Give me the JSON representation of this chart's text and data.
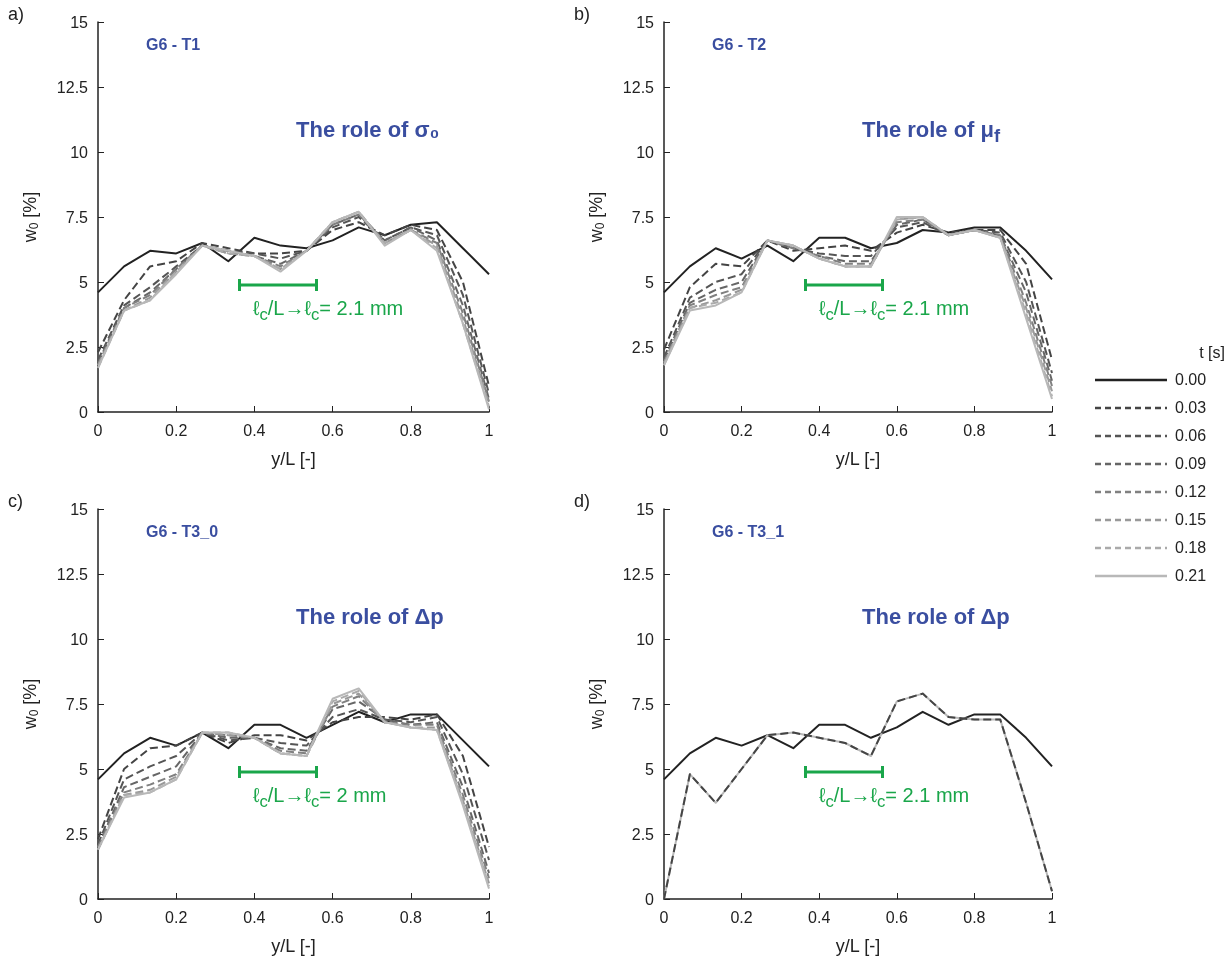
{
  "chart_data": [
    {
      "type": "line",
      "title": "G6 - T1",
      "subtitle": "The role of σ₀",
      "xlabel": "y/L [-]",
      "ylabel": "w$_{0}$ [%]",
      "annotations": [
        "a)",
        "ℓ$_{c}$/L→ℓ$_{c}$= 2.1 mm"
      ],
      "x": [
        0,
        0.0667,
        0.1333,
        0.2,
        0.2667,
        0.3333,
        0.4,
        0.4667,
        0.5333,
        0.6,
        0.6667,
        0.7333,
        0.8,
        0.8667,
        0.9333,
        1
      ],
      "xlim": [
        0,
        1
      ],
      "xticks": [
        0,
        0.2,
        0.4,
        0.6,
        0.8,
        1
      ],
      "ylim": [
        0,
        15
      ],
      "yticks": [
        0,
        2.5,
        5,
        7.5,
        10,
        12.5,
        15
      ],
      "grid": false,
      "legend": false,
      "marker": "none",
      "series": [
        {
          "color": "#222222",
          "line_style": "solid",
          "values": [
            4.6,
            5.6,
            6.2,
            6.1,
            6.5,
            5.8,
            6.7,
            6.4,
            6.3,
            6.6,
            7.1,
            6.8,
            7.2,
            7.3,
            6.3,
            5.3
          ]
        },
        {
          "color": "#444444",
          "line_style": "dashed",
          "values": [
            2.3,
            4.3,
            5.6,
            5.8,
            6.5,
            6.3,
            6.1,
            6.1,
            6.2,
            7.0,
            7.3,
            6.8,
            7.2,
            7.0,
            5.0,
            1.0
          ]
        },
        {
          "color": "#555555",
          "line_style": "dashed",
          "values": [
            2.0,
            4.1,
            4.8,
            5.6,
            6.4,
            6.2,
            6.1,
            5.9,
            6.2,
            7.1,
            7.5,
            6.6,
            7.1,
            6.8,
            4.5,
            0.7
          ]
        },
        {
          "color": "#666666",
          "line_style": "dashed",
          "values": [
            1.9,
            4.0,
            4.6,
            5.5,
            6.4,
            6.2,
            6.0,
            5.7,
            6.2,
            7.2,
            7.6,
            6.6,
            7.1,
            6.6,
            4.1,
            0.5
          ]
        },
        {
          "color": "#808080",
          "line_style": "dashed",
          "values": [
            1.8,
            4.0,
            4.5,
            5.5,
            6.4,
            6.1,
            6.0,
            5.6,
            6.2,
            7.2,
            7.6,
            6.5,
            7.0,
            6.5,
            3.8,
            0.4
          ]
        },
        {
          "color": "#999999",
          "line_style": "dashed",
          "values": [
            1.8,
            3.9,
            4.4,
            5.4,
            6.4,
            6.1,
            6.0,
            5.5,
            6.2,
            7.3,
            7.7,
            6.5,
            7.0,
            6.4,
            3.6,
            0.3
          ]
        },
        {
          "color": "#aaaaaa",
          "line_style": "dashed",
          "values": [
            1.7,
            3.9,
            4.3,
            5.4,
            6.4,
            6.1,
            6.0,
            5.5,
            6.2,
            7.3,
            7.7,
            6.5,
            7.0,
            6.3,
            3.4,
            0.2
          ]
        },
        {
          "color": "#b8b8b8",
          "line_style": "solid",
          "values": [
            1.7,
            3.9,
            4.3,
            5.3,
            6.4,
            6.2,
            6.0,
            5.4,
            6.2,
            7.3,
            7.7,
            6.4,
            7.0,
            6.2,
            3.4,
            0.1
          ]
        }
      ]
    },
    {
      "type": "line",
      "title": "G6 - T2",
      "subtitle": "The role of μ$_{f}$",
      "xlabel": "y/L [-]",
      "ylabel": "w$_{0}$ [%]",
      "annotations": [
        "b)",
        "ℓ$_{c}$/L→ℓ$_{c}$= 2.1 mm"
      ],
      "legend_title": "t [s]",
      "x": [
        0,
        0.0667,
        0.1333,
        0.2,
        0.2667,
        0.3333,
        0.4,
        0.4667,
        0.5333,
        0.6,
        0.6667,
        0.7333,
        0.8,
        0.8667,
        0.9333,
        1
      ],
      "xlim": [
        0,
        1
      ],
      "xticks": [
        0,
        0.2,
        0.4,
        0.6,
        0.8,
        1
      ],
      "ylim": [
        0,
        15
      ],
      "yticks": [
        0,
        2.5,
        5,
        7.5,
        10,
        12.5,
        15
      ],
      "grid": false,
      "legend": "right",
      "marker": "none",
      "series": [
        {
          "name": "0.00",
          "color": "#222222",
          "line_style": "solid",
          "values": [
            4.6,
            5.6,
            6.3,
            5.9,
            6.4,
            5.8,
            6.7,
            6.7,
            6.3,
            6.5,
            7.0,
            6.9,
            7.1,
            7.1,
            6.2,
            5.1
          ]
        },
        {
          "name": "0.03",
          "color": "#444444",
          "line_style": "dashed",
          "values": [
            2.4,
            4.8,
            5.7,
            5.6,
            6.6,
            6.2,
            6.3,
            6.4,
            6.2,
            6.9,
            7.2,
            6.9,
            7.0,
            7.0,
            5.7,
            2.0
          ]
        },
        {
          "name": "0.06",
          "color": "#555555",
          "line_style": "dashed",
          "values": [
            2.1,
            4.4,
            5.0,
            5.3,
            6.6,
            6.3,
            6.1,
            6.0,
            6.0,
            7.1,
            7.3,
            6.8,
            7.0,
            6.9,
            5.0,
            1.5
          ]
        },
        {
          "name": "0.09",
          "color": "#666666",
          "line_style": "dashed",
          "values": [
            2.0,
            4.2,
            4.7,
            5.0,
            6.6,
            6.3,
            6.0,
            5.8,
            5.8,
            7.2,
            7.4,
            6.8,
            7.0,
            6.8,
            4.6,
            1.2
          ]
        },
        {
          "name": "0.12",
          "color": "#808080",
          "line_style": "dashed",
          "values": [
            1.9,
            4.1,
            4.5,
            4.8,
            6.6,
            6.3,
            6.0,
            5.7,
            5.7,
            7.3,
            7.4,
            6.8,
            7.0,
            6.8,
            4.2,
            1.0
          ]
        },
        {
          "name": "0.15",
          "color": "#999999",
          "line_style": "dashed",
          "values": [
            1.9,
            4.0,
            4.3,
            4.7,
            6.6,
            6.4,
            5.9,
            5.6,
            5.6,
            7.4,
            7.5,
            6.8,
            7.0,
            6.7,
            4.0,
            0.8
          ]
        },
        {
          "name": "0.18",
          "color": "#aaaaaa",
          "line_style": "dashed",
          "values": [
            1.8,
            4.0,
            4.2,
            4.6,
            6.6,
            6.4,
            5.9,
            5.6,
            5.6,
            7.4,
            7.5,
            6.8,
            7.0,
            6.7,
            3.8,
            0.6
          ]
        },
        {
          "name": "0.21",
          "color": "#b8b8b8",
          "line_style": "solid",
          "values": [
            1.8,
            3.9,
            4.1,
            4.6,
            6.6,
            6.4,
            5.9,
            5.6,
            5.6,
            7.5,
            7.5,
            6.8,
            7.0,
            6.7,
            3.6,
            0.5
          ]
        }
      ]
    },
    {
      "type": "line",
      "title": "G6 - T3_0",
      "subtitle": "The role of Δp",
      "xlabel": "y/L [-]",
      "ylabel": "w$_{0}$ [%]",
      "annotations": [
        "c)",
        "ℓ$_{c}$/L→ℓ$_{c}$= 2 mm"
      ],
      "x": [
        0,
        0.0667,
        0.1333,
        0.2,
        0.2667,
        0.3333,
        0.4,
        0.4667,
        0.5333,
        0.6,
        0.6667,
        0.7333,
        0.8,
        0.8667,
        0.9333,
        1
      ],
      "xlim": [
        0,
        1
      ],
      "xticks": [
        0,
        0.2,
        0.4,
        0.6,
        0.8,
        1
      ],
      "ylim": [
        0,
        15
      ],
      "yticks": [
        0,
        2.5,
        5,
        7.5,
        10,
        12.5,
        15
      ],
      "grid": false,
      "legend": false,
      "marker": "none",
      "series": [
        {
          "color": "#222222",
          "line_style": "solid",
          "values": [
            4.6,
            5.6,
            6.2,
            5.9,
            6.4,
            5.8,
            6.7,
            6.7,
            6.2,
            6.7,
            7.2,
            6.8,
            7.1,
            7.1,
            6.1,
            5.1
          ]
        },
        {
          "color": "#444444",
          "line_style": "dashed",
          "values": [
            2.3,
            5.0,
            5.8,
            5.9,
            6.4,
            6.0,
            6.3,
            6.3,
            6.1,
            6.8,
            7.0,
            7.0,
            6.9,
            7.1,
            5.5,
            2.0
          ]
        },
        {
          "color": "#555555",
          "line_style": "dashed",
          "values": [
            2.1,
            4.6,
            5.1,
            5.5,
            6.4,
            6.1,
            6.2,
            6.0,
            5.9,
            7.0,
            7.3,
            6.9,
            6.8,
            7.0,
            4.8,
            1.5
          ]
        },
        {
          "color": "#666666",
          "line_style": "dashed",
          "values": [
            2.0,
            4.3,
            4.7,
            5.1,
            6.4,
            6.2,
            6.2,
            5.8,
            5.7,
            7.3,
            7.6,
            6.9,
            6.7,
            6.8,
            4.3,
            1.0
          ]
        },
        {
          "color": "#808080",
          "line_style": "dashed",
          "values": [
            2.0,
            4.1,
            4.4,
            4.8,
            6.4,
            6.3,
            6.2,
            5.7,
            5.6,
            7.4,
            7.8,
            6.8,
            6.7,
            6.7,
            4.0,
            0.8
          ]
        },
        {
          "color": "#999999",
          "line_style": "dashed",
          "values": [
            1.9,
            4.0,
            4.2,
            4.7,
            6.4,
            6.3,
            6.2,
            5.6,
            5.5,
            7.5,
            7.9,
            6.8,
            6.6,
            6.6,
            3.8,
            0.6
          ]
        },
        {
          "color": "#aaaaaa",
          "line_style": "dashed",
          "values": [
            1.9,
            4.0,
            4.1,
            4.6,
            6.4,
            6.4,
            6.2,
            5.6,
            5.5,
            7.6,
            8.0,
            6.8,
            6.6,
            6.5,
            3.7,
            0.5
          ]
        },
        {
          "color": "#b8b8b8",
          "line_style": "solid",
          "values": [
            1.9,
            3.9,
            4.1,
            4.6,
            6.4,
            6.4,
            6.2,
            5.6,
            5.5,
            7.7,
            8.1,
            6.8,
            6.6,
            6.5,
            3.6,
            0.4
          ]
        }
      ]
    },
    {
      "type": "line",
      "title": "G6 - T3_1",
      "subtitle": "The role of Δp",
      "xlabel": "y/L [-]",
      "ylabel": "w$_{0}$ [%]",
      "annotations": [
        "d)",
        "ℓ$_{c}$/L→ℓ$_{c}$= 2.1 mm"
      ],
      "x": [
        0,
        0.0667,
        0.1333,
        0.2,
        0.2667,
        0.3333,
        0.4,
        0.4667,
        0.5333,
        0.6,
        0.6667,
        0.7333,
        0.8,
        0.8667,
        0.9333,
        1
      ],
      "xlim": [
        0,
        1
      ],
      "xticks": [
        0,
        0.2,
        0.4,
        0.6,
        0.8,
        1
      ],
      "ylim": [
        0,
        15
      ],
      "yticks": [
        0,
        2.5,
        5,
        7.5,
        10,
        12.5,
        15
      ],
      "grid": false,
      "legend": false,
      "marker": "none",
      "series": [
        {
          "color": "#222222",
          "line_style": "solid",
          "values": [
            4.6,
            5.6,
            6.2,
            5.9,
            6.3,
            5.8,
            6.7,
            6.7,
            6.2,
            6.6,
            7.2,
            6.7,
            7.1,
            7.1,
            6.2,
            5.1
          ]
        },
        {
          "color": "#b8b8b8",
          "line_style": "solid",
          "values": [
            0,
            4.8,
            3.7,
            5.0,
            6.3,
            6.4,
            6.2,
            6.0,
            5.5,
            7.6,
            7.9,
            7.0,
            6.9,
            6.9,
            3.7,
            0.3
          ]
        },
        {
          "color": "#444444",
          "line_style": "dashed",
          "values": [
            0,
            4.8,
            3.7,
            5.0,
            6.3,
            6.4,
            6.2,
            6.0,
            5.5,
            7.6,
            7.9,
            7.0,
            6.9,
            6.9,
            3.7,
            0.3
          ]
        }
      ]
    }
  ]
}
